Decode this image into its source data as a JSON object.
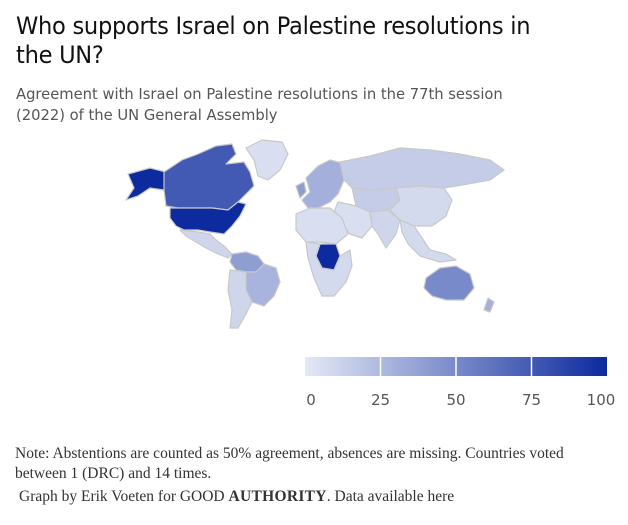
{
  "title": "Who supports Israel on Palestine resolutions in the UN?",
  "subtitle": "Agreement with Israel on Palestine resolutions in the 77th session (2022) of the UN General Assembly",
  "colors": {
    "low": "#e4e9f5",
    "high": "#0d2a9e",
    "border": "#c8c8c8"
  },
  "legend": {
    "min": 0,
    "max": 100,
    "ticks": [
      "0",
      "25",
      "50",
      "75",
      "100"
    ]
  },
  "regions": [
    {
      "name": "United States",
      "value": 100
    },
    {
      "name": "Canada",
      "value": 75
    },
    {
      "name": "Alaska",
      "value": 100
    },
    {
      "name": "Greenland",
      "value": 5
    },
    {
      "name": "Mexico",
      "value": 10
    },
    {
      "name": "Brazil",
      "value": 28
    },
    {
      "name": "Colombia",
      "value": 40
    },
    {
      "name": "Argentina",
      "value": 10
    },
    {
      "name": "Europe",
      "value": 30
    },
    {
      "name": "United Kingdom",
      "value": 40
    },
    {
      "name": "Russia",
      "value": 15
    },
    {
      "name": "Kazakhstan",
      "value": 15
    },
    {
      "name": "China",
      "value": 8
    },
    {
      "name": "India",
      "value": 10
    },
    {
      "name": "Middle East",
      "value": 5
    },
    {
      "name": "North Africa",
      "value": 5
    },
    {
      "name": "DR Congo",
      "value": 100
    },
    {
      "name": "Southern Africa",
      "value": 8
    },
    {
      "name": "Southeast Asia",
      "value": 8
    },
    {
      "name": "Australia",
      "value": 50
    },
    {
      "name": "New Zealand",
      "value": 30
    }
  ],
  "note": "Note: Abstentions are counted as 50% agreement, absences are missing. Countries voted between 1 (DRC) and 14 times.",
  "credit": {
    "prefix": "Graph by Erik Voeten for GOOD ",
    "brand": "AUTHORITY",
    "suffix": ". Data available here"
  }
}
